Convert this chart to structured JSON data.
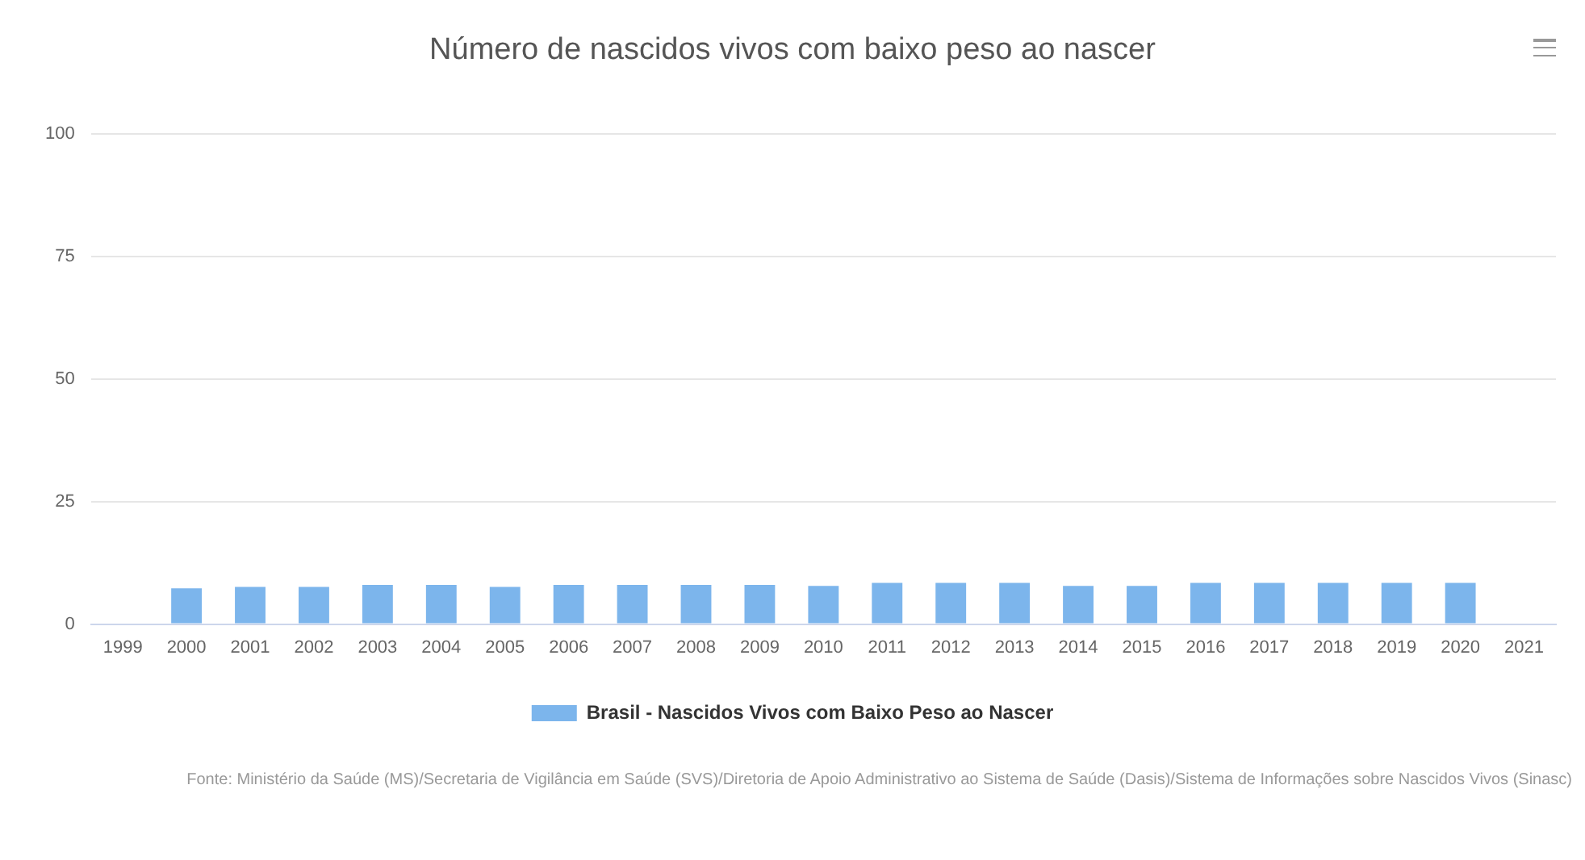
{
  "chart_data": {
    "type": "bar",
    "title": "Número de nascidos vivos com baixo peso ao nascer",
    "categories": [
      "1999",
      "2000",
      "2001",
      "2002",
      "2003",
      "2004",
      "2005",
      "2006",
      "2007",
      "2008",
      "2009",
      "2010",
      "2011",
      "2012",
      "2013",
      "2014",
      "2015",
      "2016",
      "2017",
      "2018",
      "2019",
      "2020",
      "2021"
    ],
    "series": [
      {
        "name": "Brasil - Nascidos Vivos com Baixo Peso ao Nascer",
        "color": "#7cb5ec",
        "values": [
          null,
          7.3,
          7.6,
          7.6,
          8.0,
          8.0,
          7.6,
          8.0,
          8.0,
          8.0,
          8.0,
          7.8,
          8.4,
          8.4,
          8.4,
          7.8,
          7.8,
          8.4,
          8.4,
          8.4,
          8.4,
          8.4,
          null
        ]
      }
    ],
    "ylim": [
      0,
      100
    ],
    "yticks": [
      0,
      25,
      50,
      75,
      100
    ],
    "grid": "y",
    "legend": "bottom",
    "annotations": [
      "Fonte: Ministério da Saúde (MS)/Secretaria de Vigilância em Saúde (SVS)/Diretoria de Apoio Administrativo ao Sistema de Saúde (Dasis)/Sistema de Informações sobre Nascidos Vivos (Sinasc)"
    ]
  }
}
